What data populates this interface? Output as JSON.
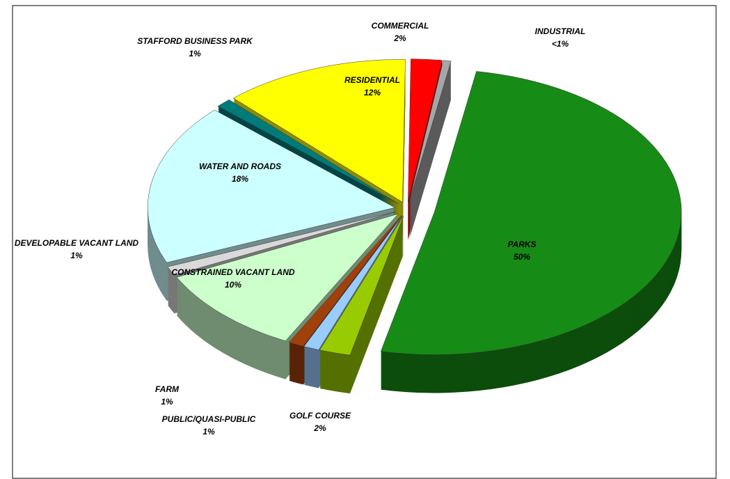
{
  "chart_data": {
    "type": "pie",
    "categories": [
      "PARKS",
      "GOLF COURSE",
      "PUBLIC/QUASI-PUBLIC",
      "FARM",
      "CONSTRAINED VACANT LAND",
      "DEVELOPABLE VACANT LAND",
      "WATER AND ROADS",
      "STAFFORD BUSINESS PARK",
      "RESIDENTIAL",
      "COMMERCIAL",
      "INDUSTRIAL"
    ],
    "values": [
      50,
      2,
      1,
      1,
      10,
      1,
      18,
      1,
      12,
      2,
      0.5
    ],
    "value_labels": [
      "50%",
      "2%",
      "1%",
      "1%",
      "10%",
      "1%",
      "18%",
      "1%",
      "12%",
      "2%",
      "<1%"
    ],
    "colors": [
      "#168c16",
      "#99cc00",
      "#99ccff",
      "#a0400a",
      "#ccffcc",
      "#d9d9d9",
      "#ccffff",
      "#007b7b",
      "#ffff00",
      "#ff0000",
      "#a6a6a6"
    ]
  }
}
